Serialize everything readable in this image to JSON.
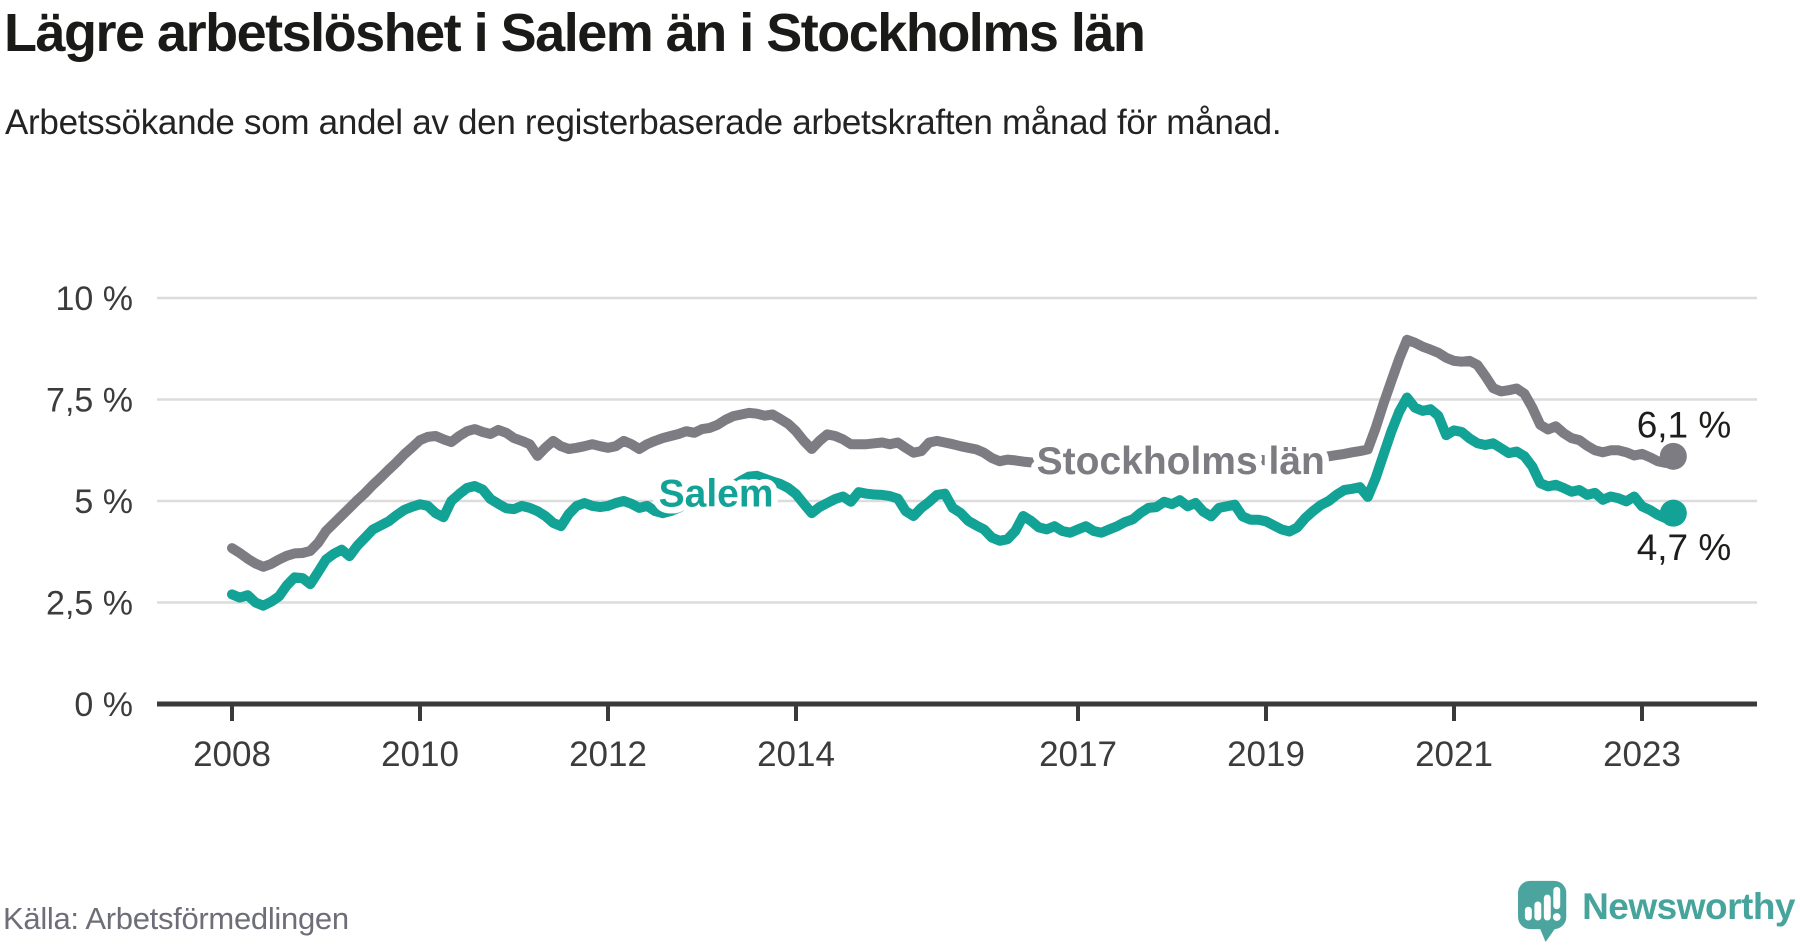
{
  "title": "Lägre arbetslöshet i Salem än i Stockholms län",
  "subtitle": "Arbetssökande som andel av den registerbaserade arbetskraften månad för månad.",
  "source": "Källa: Arbetsförmedlingen",
  "brand": {
    "name": "Newsworthy",
    "logo_color": "#4ba49d",
    "icon": "speech-bubble-bar-chart-icon"
  },
  "colors": {
    "salem": "#13a296",
    "stockholm": "#7c7c82",
    "grid": "#dcdcdc",
    "axis": "#3a3a3a",
    "tick_text": "#3c3c3c",
    "value_text": "#1d1d1b"
  },
  "chart_data": {
    "type": "line",
    "title": "Lägre arbetslöshet i Salem än i Stockholms län",
    "xlabel": "",
    "ylabel": "",
    "grid": "horizontal",
    "ylim": [
      0,
      10
    ],
    "x_start_year": 2008,
    "x_step_months": 1,
    "x_end": "2023-05",
    "x_ticks": [
      2008,
      2010,
      2012,
      2014,
      2017,
      2019,
      2021,
      2023
    ],
    "x_tick_labels": [
      "2008",
      "2010",
      "2012",
      "2014",
      "2017",
      "2019",
      "2021",
      "2023"
    ],
    "y_ticks": [
      {
        "value": 10,
        "label": "10 %"
      },
      {
        "value": 7.5,
        "label": "7,5 %"
      },
      {
        "value": 5,
        "label": "5 %"
      },
      {
        "value": 2.5,
        "label": "2,5 %"
      },
      {
        "value": 0,
        "label": "0 %"
      }
    ],
    "legend_position": "inline-labels",
    "series": [
      {
        "name": "Stockholms län",
        "color": "#7c7c82",
        "end_label": "6,1 %",
        "end_value": 6.1,
        "values": [
          3.84,
          3.72,
          3.58,
          3.46,
          3.38,
          3.45,
          3.56,
          3.65,
          3.71,
          3.72,
          3.77,
          3.97,
          4.26,
          4.45,
          4.64,
          4.83,
          5.02,
          5.2,
          5.4,
          5.58,
          5.77,
          5.95,
          6.15,
          6.32,
          6.5,
          6.58,
          6.6,
          6.52,
          6.45,
          6.6,
          6.72,
          6.77,
          6.7,
          6.65,
          6.75,
          6.68,
          6.55,
          6.48,
          6.4,
          6.11,
          6.31,
          6.48,
          6.35,
          6.28,
          6.31,
          6.35,
          6.4,
          6.35,
          6.31,
          6.35,
          6.48,
          6.4,
          6.28,
          6.4,
          6.48,
          6.55,
          6.6,
          6.65,
          6.72,
          6.68,
          6.77,
          6.8,
          6.88,
          7.0,
          7.09,
          7.13,
          7.17,
          7.15,
          7.1,
          7.13,
          7.02,
          6.9,
          6.72,
          6.48,
          6.28,
          6.48,
          6.64,
          6.6,
          6.52,
          6.4,
          6.4,
          6.4,
          6.42,
          6.44,
          6.4,
          6.44,
          6.31,
          6.19,
          6.23,
          6.44,
          6.48,
          6.44,
          6.4,
          6.35,
          6.31,
          6.27,
          6.19,
          6.06,
          5.98,
          6.02,
          6.0,
          5.97,
          5.95,
          5.93,
          5.9,
          5.92,
          5.95,
          5.97,
          5.95,
          5.92,
          5.88,
          5.86,
          5.85,
          5.87,
          5.9,
          5.92,
          5.94,
          5.96,
          5.99,
          6.01,
          6.0,
          5.97,
          5.94,
          5.91,
          5.89,
          5.88,
          5.9,
          5.93,
          5.96,
          5.98,
          6.0,
          6.02,
          6.0,
          5.97,
          5.95,
          5.96,
          5.98,
          6.01,
          6.04,
          6.07,
          6.1,
          6.13,
          6.16,
          6.2,
          6.23,
          6.27,
          6.8,
          7.4,
          7.95,
          8.5,
          8.97,
          8.9,
          8.8,
          8.73,
          8.65,
          8.53,
          8.45,
          8.43,
          8.45,
          8.35,
          8.08,
          7.78,
          7.7,
          7.73,
          7.77,
          7.64,
          7.3,
          6.88,
          6.76,
          6.84,
          6.67,
          6.55,
          6.5,
          6.36,
          6.25,
          6.2,
          6.25,
          6.25,
          6.2,
          6.12,
          6.16,
          6.08,
          5.98,
          5.94,
          6.1
        ]
      },
      {
        "name": "Salem",
        "color": "#13a296",
        "end_label": "4,7 %",
        "end_value": 4.7,
        "values": [
          2.7,
          2.62,
          2.68,
          2.5,
          2.42,
          2.52,
          2.65,
          2.92,
          3.12,
          3.1,
          2.95,
          3.25,
          3.56,
          3.7,
          3.8,
          3.64,
          3.9,
          4.1,
          4.3,
          4.4,
          4.5,
          4.65,
          4.78,
          4.86,
          4.92,
          4.88,
          4.7,
          4.6,
          5.0,
          5.17,
          5.32,
          5.37,
          5.28,
          5.05,
          4.93,
          4.82,
          4.8,
          4.88,
          4.83,
          4.75,
          4.63,
          4.46,
          4.38,
          4.68,
          4.88,
          4.95,
          4.88,
          4.85,
          4.88,
          4.95,
          5.0,
          4.93,
          4.83,
          4.88,
          4.75,
          4.7,
          4.75,
          4.83,
          4.93,
          4.95,
          5.0,
          5.08,
          5.18,
          5.28,
          5.38,
          5.5,
          5.6,
          5.62,
          5.55,
          5.48,
          5.42,
          5.32,
          5.17,
          4.93,
          4.7,
          4.85,
          4.95,
          5.05,
          5.11,
          4.98,
          5.22,
          5.18,
          5.16,
          5.15,
          5.12,
          5.06,
          4.75,
          4.63,
          4.83,
          4.98,
          5.15,
          5.18,
          4.83,
          4.71,
          4.51,
          4.4,
          4.3,
          4.1,
          4.02,
          4.06,
          4.26,
          4.63,
          4.51,
          4.35,
          4.3,
          4.38,
          4.26,
          4.22,
          4.3,
          4.38,
          4.26,
          4.22,
          4.3,
          4.38,
          4.48,
          4.55,
          4.71,
          4.83,
          4.85,
          4.98,
          4.92,
          5.02,
          4.87,
          4.95,
          4.74,
          4.62,
          4.83,
          4.87,
          4.91,
          4.62,
          4.54,
          4.54,
          4.5,
          4.4,
          4.3,
          4.25,
          4.35,
          4.58,
          4.75,
          4.9,
          5.0,
          5.15,
          5.27,
          5.3,
          5.34,
          5.1,
          5.57,
          6.14,
          6.71,
          7.2,
          7.55,
          7.3,
          7.22,
          7.26,
          7.1,
          6.62,
          6.74,
          6.7,
          6.54,
          6.42,
          6.38,
          6.42,
          6.3,
          6.18,
          6.22,
          6.1,
          5.85,
          5.44,
          5.36,
          5.4,
          5.32,
          5.23,
          5.27,
          5.15,
          5.2,
          5.03,
          5.11,
          5.07,
          4.99,
          5.11,
          4.87,
          4.78,
          4.66,
          4.58,
          4.7
        ]
      }
    ],
    "annotations": [
      {
        "text": "Stockholms län",
        "color": "#7c7c82",
        "year": 2016.56,
        "value": 5.67,
        "anchor": "start"
      },
      {
        "text": "Salem",
        "color": "#13a296",
        "year": 2013.15,
        "value": 4.86,
        "anchor": "middle"
      }
    ]
  }
}
